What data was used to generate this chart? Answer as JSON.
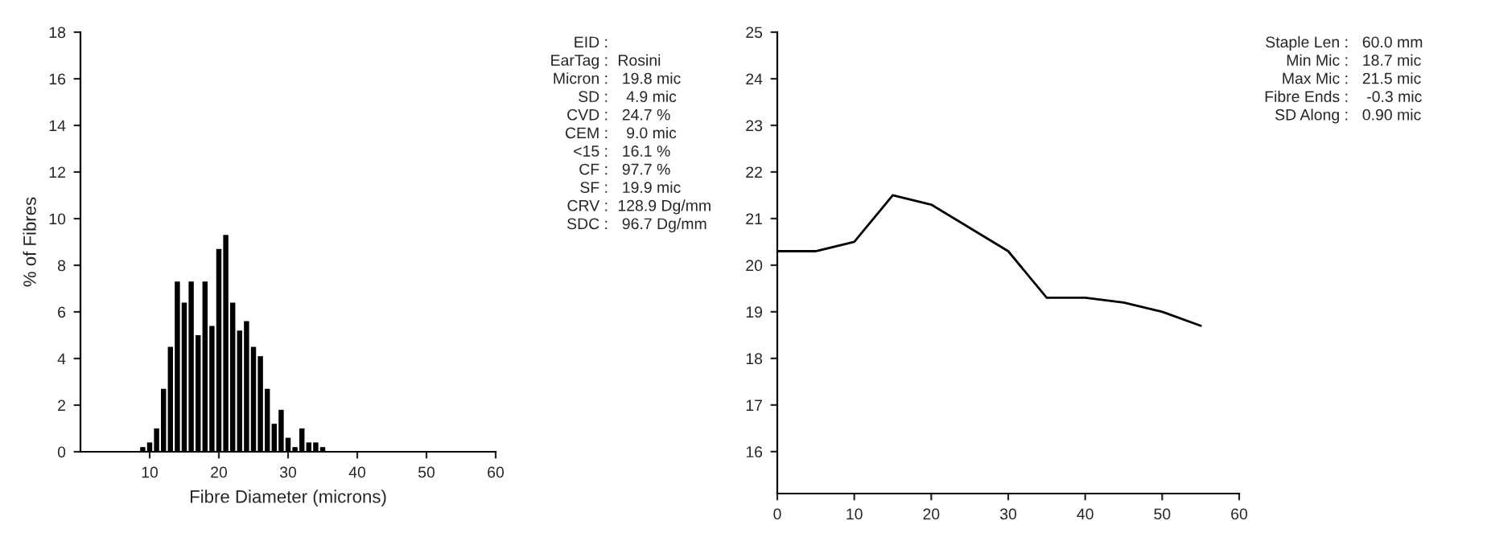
{
  "chart_data": [
    {
      "type": "histogram",
      "xlabel": "Fibre Diameter (microns)",
      "ylabel": "% of Fibres",
      "color": "#000000",
      "bins": [
        8.5,
        9.5,
        10.5,
        11.5,
        12.5,
        13.5,
        14.5,
        15.5,
        16.5,
        17.5,
        18.5,
        19.5,
        20.5,
        21.5,
        22.5,
        23.5,
        24.5,
        25.5,
        26.5,
        27.5,
        28.5,
        29.5,
        30.5,
        31.5,
        32.5,
        33.5,
        34.5,
        35.5
      ],
      "values": [
        0.2,
        0.4,
        1.0,
        2.7,
        4.5,
        7.3,
        6.4,
        7.3,
        5.0,
        7.3,
        5.4,
        8.7,
        9.3,
        6.4,
        5.2,
        5.6,
        4.5,
        4.1,
        2.7,
        1.2,
        1.8,
        0.6,
        0.2,
        1.0,
        0.4,
        0.4,
        0.2
      ],
      "xlim": [
        0,
        60
      ],
      "xticks": [
        10,
        20,
        30,
        40,
        50,
        60
      ],
      "ylim": [
        0,
        18
      ],
      "yticks": [
        0,
        2,
        4,
        6,
        8,
        10,
        12,
        14,
        16,
        18
      ],
      "grid": false,
      "annotations": [
        "EID :",
        "EarTag : Rosini",
        "Micron :  19.8 mic",
        "SD :   4.9 mic",
        "CVD :  24.7 %",
        "CEM :   9.0 mic",
        "<15 :  16.1 %",
        "CF :  97.7 %",
        "SF :  19.9 mic",
        "CRV : 128.9 Dg/mm",
        "SDC :  96.7 Dg/mm"
      ]
    },
    {
      "type": "line",
      "x": [
        0,
        5,
        10,
        15,
        20,
        25,
        30,
        35,
        40,
        45,
        50,
        55
      ],
      "series": [
        {
          "color": "#000000",
          "values": [
            20.3,
            20.3,
            20.5,
            21.5,
            21.3,
            20.8,
            20.3,
            19.3,
            19.3,
            19.2,
            19.0,
            18.7
          ]
        }
      ],
      "xlim": [
        0,
        60
      ],
      "xticks": [
        0,
        10,
        20,
        30,
        40,
        50,
        60
      ],
      "ylim": [
        15.1,
        25
      ],
      "yticks": [
        16,
        17,
        18,
        19,
        20,
        21,
        22,
        23,
        24,
        25
      ],
      "grid": false,
      "marker": "none",
      "line_style": "solid",
      "annotations": [
        "Staple Len :  60.0 mm",
        "Min Mic :  18.7 mic",
        "Max Mic :  21.5 mic",
        "Fibre Ends :   -0.3 mic",
        "SD Along :  0.90 mic"
      ]
    }
  ]
}
